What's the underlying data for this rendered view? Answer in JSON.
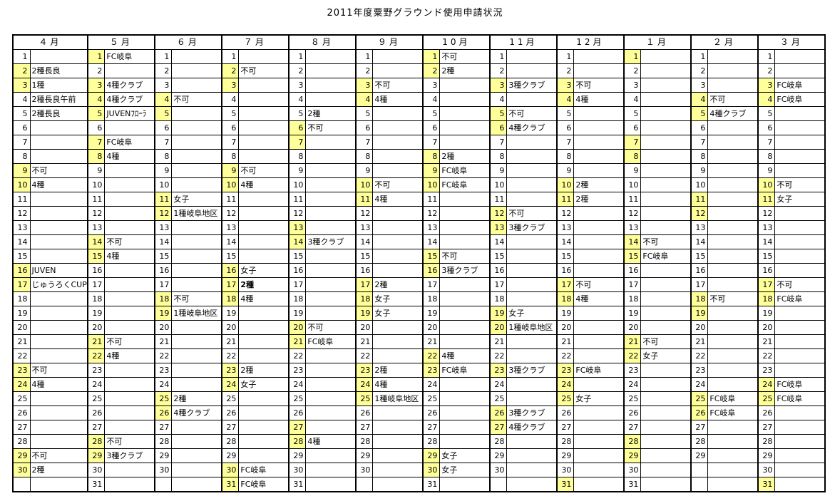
{
  "title": "2011年度粟野グラウンド使用申請状況",
  "colors": {
    "highlight": "#FFFF99",
    "grid": "#000000",
    "background": "#FFFFFF"
  },
  "months": [
    {
      "label": "４月",
      "entries": [
        {
          "d": 1
        },
        {
          "d": 2,
          "hl": true,
          "t": "2種長良"
        },
        {
          "d": 3,
          "hl": true,
          "t": "1種"
        },
        {
          "d": 4,
          "t": "2種長良午前"
        },
        {
          "d": 5,
          "t": "2種長良"
        },
        {
          "d": 6
        },
        {
          "d": 7
        },
        {
          "d": 8
        },
        {
          "d": 9,
          "hl": true,
          "t": "不可"
        },
        {
          "d": 10,
          "hl": true,
          "t": "4種"
        },
        {
          "d": 11
        },
        {
          "d": 12
        },
        {
          "d": 13
        },
        {
          "d": 14
        },
        {
          "d": 15
        },
        {
          "d": 16,
          "hl": true,
          "t": "JUVEN"
        },
        {
          "d": 17,
          "hl": true,
          "t": "じゅうろくCUP"
        },
        {
          "d": 18
        },
        {
          "d": 19
        },
        {
          "d": 20
        },
        {
          "d": 21
        },
        {
          "d": 22
        },
        {
          "d": 23,
          "hl": true,
          "t": "不可"
        },
        {
          "d": 24,
          "hl": true,
          "t": "4種"
        },
        {
          "d": 25
        },
        {
          "d": 26
        },
        {
          "d": 27
        },
        {
          "d": 28
        },
        {
          "d": 29,
          "hl": true,
          "t": "不可"
        },
        {
          "d": 30,
          "hl": true,
          "t": "2種"
        },
        {}
      ]
    },
    {
      "label": "５月",
      "entries": [
        {
          "d": 1,
          "hl": true,
          "t": "FC岐阜"
        },
        {
          "d": 2
        },
        {
          "d": 3,
          "hl": true,
          "t": "4種クラブ"
        },
        {
          "d": 4,
          "hl": true,
          "t": "4種クラブ"
        },
        {
          "d": 5,
          "hl": true,
          "t": "JUVENﾌﾛｰﾗ"
        },
        {
          "d": 6
        },
        {
          "d": 7,
          "hl": true,
          "t": "FC岐阜"
        },
        {
          "d": 8,
          "hl": true,
          "t": "4種"
        },
        {
          "d": 9
        },
        {
          "d": 10
        },
        {
          "d": 11
        },
        {
          "d": 12
        },
        {
          "d": 13
        },
        {
          "d": 14,
          "hl": true,
          "t": "不可"
        },
        {
          "d": 15,
          "hl": true,
          "t": "4種"
        },
        {
          "d": 16
        },
        {
          "d": 17
        },
        {
          "d": 18
        },
        {
          "d": 19
        },
        {
          "d": 20
        },
        {
          "d": 21,
          "hl": true,
          "t": "不可"
        },
        {
          "d": 22,
          "hl": true,
          "t": "4種"
        },
        {
          "d": 23
        },
        {
          "d": 24
        },
        {
          "d": 25
        },
        {
          "d": 26
        },
        {
          "d": 27
        },
        {
          "d": 28,
          "hl": true,
          "t": "不可"
        },
        {
          "d": 29,
          "hl": true,
          "t": "3種クラブ"
        },
        {
          "d": 30
        },
        {
          "d": 31
        }
      ]
    },
    {
      "label": "６月",
      "entries": [
        {
          "d": 1
        },
        {
          "d": 2
        },
        {
          "d": 3
        },
        {
          "d": 4,
          "hl": true,
          "t": "不可"
        },
        {
          "d": 5,
          "hl": true
        },
        {
          "d": 6
        },
        {
          "d": 7
        },
        {
          "d": 8
        },
        {
          "d": 9
        },
        {
          "d": 10
        },
        {
          "d": 11,
          "hl": true,
          "t": "女子"
        },
        {
          "d": 12,
          "hl": true,
          "t": "1種岐阜地区"
        },
        {
          "d": 13
        },
        {
          "d": 14
        },
        {
          "d": 15
        },
        {
          "d": 16
        },
        {
          "d": 17
        },
        {
          "d": 18,
          "hl": true,
          "t": "不可"
        },
        {
          "d": 19,
          "hl": true,
          "t": "1種岐阜地区"
        },
        {
          "d": 20
        },
        {
          "d": 21
        },
        {
          "d": 22
        },
        {
          "d": 23
        },
        {
          "d": 24
        },
        {
          "d": 25,
          "hl": true,
          "t": "2種"
        },
        {
          "d": 26,
          "hl": true,
          "t": "4種クラブ"
        },
        {
          "d": 27
        },
        {
          "d": 28
        },
        {
          "d": 29
        },
        {
          "d": 30
        },
        {}
      ]
    },
    {
      "label": "７月",
      "entries": [
        {
          "d": 1
        },
        {
          "d": 2,
          "hl": true,
          "t": "不可"
        },
        {
          "d": 3,
          "hl": true
        },
        {
          "d": 4
        },
        {
          "d": 5
        },
        {
          "d": 6
        },
        {
          "d": 7
        },
        {
          "d": 8
        },
        {
          "d": 9,
          "hl": true,
          "t": "不可"
        },
        {
          "d": 10,
          "hl": true,
          "t": "4種"
        },
        {
          "d": 11
        },
        {
          "d": 12
        },
        {
          "d": 13
        },
        {
          "d": 14
        },
        {
          "d": 15
        },
        {
          "d": 16,
          "hl": true,
          "t": "女子"
        },
        {
          "d": 17,
          "hl": true,
          "t": "2種",
          "b": true
        },
        {
          "d": 18,
          "hl": true,
          "t": "4種"
        },
        {
          "d": 19
        },
        {
          "d": 20
        },
        {
          "d": 21
        },
        {
          "d": 22
        },
        {
          "d": 23,
          "hl": true,
          "t": "2種"
        },
        {
          "d": 24,
          "hl": true,
          "t": "女子"
        },
        {
          "d": 25
        },
        {
          "d": 26
        },
        {
          "d": 27
        },
        {
          "d": 28
        },
        {
          "d": 29
        },
        {
          "d": 30,
          "hl": true,
          "t": "FC岐阜"
        },
        {
          "d": 31,
          "hl": true,
          "t": "FC岐阜"
        }
      ]
    },
    {
      "label": "８月",
      "entries": [
        {
          "d": 1
        },
        {
          "d": 2
        },
        {
          "d": 3
        },
        {
          "d": 4
        },
        {
          "d": 5,
          "t": "2種"
        },
        {
          "d": 6,
          "hl": true,
          "t": "不可"
        },
        {
          "d": 7,
          "hl": true
        },
        {
          "d": 8
        },
        {
          "d": 9
        },
        {
          "d": 10
        },
        {
          "d": 11
        },
        {
          "d": 12
        },
        {
          "d": 13,
          "hl": true
        },
        {
          "d": 14,
          "hl": true,
          "t": "3種クラブ"
        },
        {
          "d": 15
        },
        {
          "d": 16
        },
        {
          "d": 17
        },
        {
          "d": 18
        },
        {
          "d": 19
        },
        {
          "d": 20,
          "hl": true,
          "t": "不可"
        },
        {
          "d": 21,
          "hl": true,
          "t": "FC岐阜"
        },
        {
          "d": 22
        },
        {
          "d": 23
        },
        {
          "d": 24
        },
        {
          "d": 25
        },
        {
          "d": 26
        },
        {
          "d": 27,
          "hl": true
        },
        {
          "d": 28,
          "hl": true,
          "t": "4種"
        },
        {
          "d": 29
        },
        {
          "d": 30
        },
        {
          "d": 31
        }
      ]
    },
    {
      "label": "９月",
      "entries": [
        {
          "d": 1
        },
        {
          "d": 2
        },
        {
          "d": 3,
          "hl": true,
          "t": "不可"
        },
        {
          "d": 4,
          "hl": true,
          "t": "4種"
        },
        {
          "d": 5
        },
        {
          "d": 6
        },
        {
          "d": 7
        },
        {
          "d": 8
        },
        {
          "d": 9
        },
        {
          "d": 10,
          "hl": true,
          "t": "不可"
        },
        {
          "d": 11,
          "hl": true,
          "t": "4種"
        },
        {
          "d": 12
        },
        {
          "d": 13
        },
        {
          "d": 14
        },
        {
          "d": 15
        },
        {
          "d": 16
        },
        {
          "d": 17,
          "hl": true,
          "t": "2種"
        },
        {
          "d": 18,
          "hl": true,
          "t": "女子"
        },
        {
          "d": 19,
          "hl": true,
          "t": "女子"
        },
        {
          "d": 20
        },
        {
          "d": 21
        },
        {
          "d": 22
        },
        {
          "d": 23,
          "hl": true,
          "t": "2種"
        },
        {
          "d": 24,
          "hl": true,
          "t": "4種"
        },
        {
          "d": 25,
          "hl": true,
          "t": "1種岐阜地区"
        },
        {
          "d": 26
        },
        {
          "d": 27
        },
        {
          "d": 28
        },
        {
          "d": 29
        },
        {
          "d": 30
        },
        {}
      ]
    },
    {
      "label": "10月",
      "entries": [
        {
          "d": 1,
          "hl": true,
          "t": "不可"
        },
        {
          "d": 2,
          "hl": true,
          "t": "2種"
        },
        {
          "d": 3
        },
        {
          "d": 4
        },
        {
          "d": 5
        },
        {
          "d": 6
        },
        {
          "d": 7
        },
        {
          "d": 8,
          "hl": true,
          "t": "2種"
        },
        {
          "d": 9,
          "hl": true,
          "t": "FC岐阜"
        },
        {
          "d": 10,
          "hl": true,
          "t": "FC岐阜"
        },
        {
          "d": 11
        },
        {
          "d": 12
        },
        {
          "d": 13
        },
        {
          "d": 14
        },
        {
          "d": 15,
          "hl": true,
          "t": "不可"
        },
        {
          "d": 16,
          "hl": true,
          "t": "3種クラブ"
        },
        {
          "d": 17
        },
        {
          "d": 18
        },
        {
          "d": 19
        },
        {
          "d": 20
        },
        {
          "d": 21
        },
        {
          "d": 22,
          "hl": true,
          "t": "4種"
        },
        {
          "d": 23,
          "hl": true,
          "t": "FC岐阜"
        },
        {
          "d": 24
        },
        {
          "d": 25
        },
        {
          "d": 26
        },
        {
          "d": 27
        },
        {
          "d": 28
        },
        {
          "d": 29,
          "hl": true,
          "t": "女子"
        },
        {
          "d": 30,
          "hl": true,
          "t": "女子"
        },
        {
          "d": 31
        }
      ]
    },
    {
      "label": "11月",
      "entries": [
        {
          "d": 1
        },
        {
          "d": 2
        },
        {
          "d": 3,
          "hl": true,
          "t": "3種クラブ"
        },
        {
          "d": 4
        },
        {
          "d": 5,
          "hl": true,
          "t": "不可"
        },
        {
          "d": 6,
          "hl": true,
          "t": "4種クラブ"
        },
        {
          "d": 7
        },
        {
          "d": 8
        },
        {
          "d": 9
        },
        {
          "d": 10
        },
        {
          "d": 11
        },
        {
          "d": 12,
          "hl": true,
          "t": "不可"
        },
        {
          "d": 13,
          "hl": true,
          "t": "3種クラブ"
        },
        {
          "d": 14
        },
        {
          "d": 15
        },
        {
          "d": 16
        },
        {
          "d": 17
        },
        {
          "d": 18
        },
        {
          "d": 19,
          "hl": true,
          "t": "女子"
        },
        {
          "d": 20,
          "hl": true,
          "t": "1種岐阜地区"
        },
        {
          "d": 21
        },
        {
          "d": 22
        },
        {
          "d": 23,
          "hl": true,
          "t": "3種クラブ"
        },
        {
          "d": 24
        },
        {
          "d": 25
        },
        {
          "d": 26,
          "hl": true,
          "t": "3種クラブ"
        },
        {
          "d": 27,
          "hl": true,
          "t": "4種クラブ"
        },
        {
          "d": 28
        },
        {
          "d": 29
        },
        {
          "d": 30
        },
        {}
      ]
    },
    {
      "label": "12月",
      "entries": [
        {
          "d": 1
        },
        {
          "d": 2
        },
        {
          "d": 3,
          "hl": true,
          "t": "不可"
        },
        {
          "d": 4,
          "hl": true,
          "t": "4種"
        },
        {
          "d": 5
        },
        {
          "d": 6
        },
        {
          "d": 7
        },
        {
          "d": 8
        },
        {
          "d": 9
        },
        {
          "d": 10,
          "hl": true,
          "t": "2種"
        },
        {
          "d": 11,
          "hl": true,
          "t": "2種"
        },
        {
          "d": 12
        },
        {
          "d": 13
        },
        {
          "d": 14
        },
        {
          "d": 15
        },
        {
          "d": 16
        },
        {
          "d": 17,
          "hl": true,
          "t": "不可"
        },
        {
          "d": 18,
          "hl": true,
          "t": "4種"
        },
        {
          "d": 19
        },
        {
          "d": 20
        },
        {
          "d": 21
        },
        {
          "d": 22
        },
        {
          "d": 23,
          "hl": true,
          "t": "FC岐阜"
        },
        {
          "d": 24,
          "hl": true
        },
        {
          "d": 25,
          "hl": true,
          "t": "女子"
        },
        {
          "d": 26
        },
        {
          "d": 27
        },
        {
          "d": 28
        },
        {
          "d": 29
        },
        {
          "d": 30
        },
        {
          "d": 31,
          "hl": true
        }
      ]
    },
    {
      "label": "１月",
      "entries": [
        {
          "d": 1,
          "hl": true
        },
        {
          "d": 2
        },
        {
          "d": 3
        },
        {
          "d": 4
        },
        {
          "d": 5
        },
        {
          "d": 6
        },
        {
          "d": 7,
          "hl": true
        },
        {
          "d": 8,
          "hl": true
        },
        {
          "d": 9
        },
        {
          "d": 10
        },
        {
          "d": 11
        },
        {
          "d": 12
        },
        {
          "d": 13
        },
        {
          "d": 14,
          "hl": true,
          "t": "不可"
        },
        {
          "d": 15,
          "hl": true,
          "t": "FC岐阜"
        },
        {
          "d": 16
        },
        {
          "d": 17
        },
        {
          "d": 18
        },
        {
          "d": 19
        },
        {
          "d": 20
        },
        {
          "d": 21,
          "hl": true,
          "t": "不可"
        },
        {
          "d": 22,
          "hl": true,
          "t": "女子"
        },
        {
          "d": 23
        },
        {
          "d": 24
        },
        {
          "d": 25
        },
        {
          "d": 26
        },
        {
          "d": 27
        },
        {
          "d": 28,
          "hl": true
        },
        {
          "d": 29,
          "hl": true
        },
        {
          "d": 30
        },
        {
          "d": 31
        }
      ]
    },
    {
      "label": "２月",
      "entries": [
        {
          "d": 1
        },
        {
          "d": 2
        },
        {
          "d": 3
        },
        {
          "d": 4,
          "hl": true,
          "t": "不可"
        },
        {
          "d": 5,
          "hl": true,
          "t": "4種クラブ"
        },
        {
          "d": 6
        },
        {
          "d": 7
        },
        {
          "d": 8
        },
        {
          "d": 9
        },
        {
          "d": 10
        },
        {
          "d": 11,
          "hl": true
        },
        {
          "d": 12,
          "hl": true
        },
        {
          "d": 13
        },
        {
          "d": 14
        },
        {
          "d": 15
        },
        {
          "d": 16
        },
        {
          "d": 17
        },
        {
          "d": 18,
          "hl": true,
          "t": "不可"
        },
        {
          "d": 19,
          "hl": true
        },
        {
          "d": 20
        },
        {
          "d": 21
        },
        {
          "d": 22
        },
        {
          "d": 23
        },
        {
          "d": 24
        },
        {
          "d": 25,
          "hl": true,
          "t": "FC岐阜"
        },
        {
          "d": 26,
          "hl": true,
          "t": "FC岐阜"
        },
        {
          "d": 27
        },
        {
          "d": 28
        },
        {
          "d": 29
        },
        {},
        {}
      ]
    },
    {
      "label": "３月",
      "entries": [
        {
          "d": 1
        },
        {
          "d": 2
        },
        {
          "d": 3,
          "hl": true,
          "t": "FC岐阜"
        },
        {
          "d": 4,
          "hl": true,
          "t": "FC岐阜"
        },
        {
          "d": 5
        },
        {
          "d": 6
        },
        {
          "d": 7
        },
        {
          "d": 8
        },
        {
          "d": 9
        },
        {
          "d": 10,
          "hl": true,
          "t": "不可"
        },
        {
          "d": 11,
          "hl": true,
          "t": "女子"
        },
        {
          "d": 12
        },
        {
          "d": 13
        },
        {
          "d": 14
        },
        {
          "d": 15
        },
        {
          "d": 16
        },
        {
          "d": 17,
          "hl": true,
          "t": "不可"
        },
        {
          "d": 18,
          "hl": true,
          "t": "FC岐阜"
        },
        {
          "d": 19
        },
        {
          "d": 20
        },
        {
          "d": 21
        },
        {
          "d": 22
        },
        {
          "d": 23
        },
        {
          "d": 24,
          "hl": true,
          "t": "FC岐阜"
        },
        {
          "d": 25,
          "hl": true,
          "t": "FC岐阜"
        },
        {
          "d": 26
        },
        {
          "d": 27
        },
        {
          "d": 28
        },
        {
          "d": 29
        },
        {
          "d": 30
        },
        {
          "d": 31,
          "hl": true
        }
      ]
    }
  ]
}
